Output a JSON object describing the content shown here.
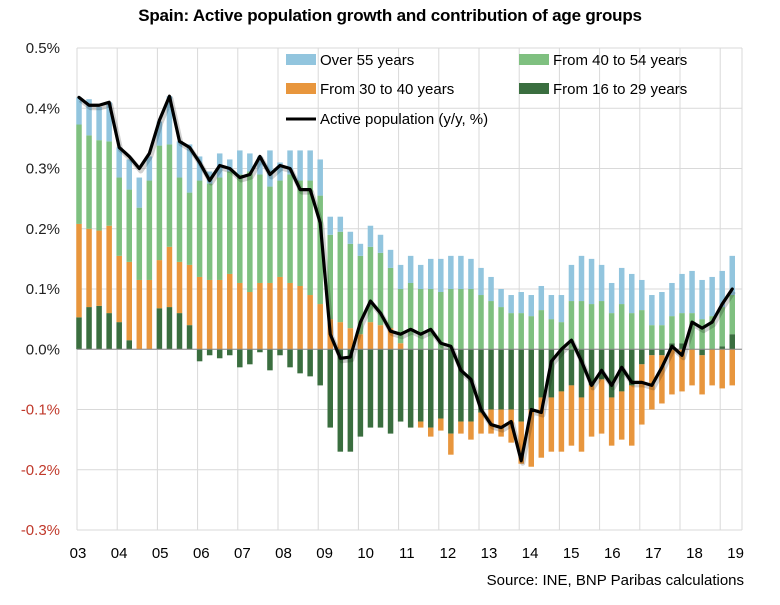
{
  "chart_data": {
    "type": "bar",
    "title": "Spain: Active population growth and contribution of age groups",
    "source": "Source: INE, BNP Paribas calculations",
    "xlabel": "",
    "ylabel": "",
    "ylim": [
      -0.3,
      0.5
    ],
    "yticks": [
      "0.5%",
      "0.4%",
      "0.3%",
      "0.2%",
      "0.1%",
      "0.0%",
      "-0.1%",
      "-0.2%",
      "-0.3%"
    ],
    "ytick_values": [
      0.5,
      0.4,
      0.3,
      0.2,
      0.1,
      0.0,
      -0.1,
      -0.2,
      -0.3
    ],
    "xtick_labels": [
      "03",
      "04",
      "05",
      "06",
      "07",
      "08",
      "09",
      "10",
      "11",
      "12",
      "13",
      "14",
      "15",
      "16",
      "17",
      "18",
      "19"
    ],
    "grid": true,
    "legend_position": "top-right",
    "frequency": "quarterly, 2003Q1-2019Q2",
    "colors": {
      "over55": "#92c5de",
      "from40to54": "#7fc080",
      "from30to40": "#e8963d",
      "from16to29": "#3a6e3f",
      "line": "#000000",
      "negative_tick": "#c0392b"
    },
    "series": [
      {
        "key": "from16to29",
        "name": "From 16 to 29 years",
        "type": "bar",
        "values": [
          0.053,
          0.07,
          0.072,
          0.06,
          0.045,
          0.015,
          0,
          0,
          0.068,
          0.07,
          0.06,
          0.04,
          -0.02,
          -0.01,
          -0.015,
          -0.01,
          -0.03,
          -0.025,
          -0.005,
          -0.035,
          -0.01,
          -0.03,
          -0.04,
          -0.045,
          -0.06,
          -0.13,
          -0.17,
          -0.17,
          -0.145,
          -0.13,
          -0.13,
          -0.14,
          -0.12,
          -0.13,
          -0.12,
          -0.13,
          -0.115,
          -0.14,
          -0.12,
          -0.12,
          -0.105,
          -0.1,
          -0.1,
          -0.1,
          -0.12,
          -0.1,
          -0.08,
          -0.08,
          -0.07,
          -0.06,
          -0.08,
          -0.06,
          -0.05,
          -0.08,
          -0.07,
          -0.06,
          -0.025,
          -0.01,
          -0.01,
          0.01,
          0.01,
          0.0,
          -0.01,
          0.0,
          0.005,
          0.025
        ]
      },
      {
        "key": "from30to40",
        "name": "From 30 to 40 years",
        "type": "bar",
        "values": [
          0.155,
          0.13,
          0.125,
          0.145,
          0.11,
          0.13,
          0.115,
          0.115,
          0.08,
          0.1,
          0.085,
          0.1,
          0.12,
          0.115,
          0.115,
          0.125,
          0.11,
          0.095,
          0.11,
          0.11,
          0.12,
          0.11,
          0.105,
          0.09,
          0.075,
          0.05,
          0.045,
          0.035,
          0.025,
          0.045,
          0.04,
          0.035,
          0.01,
          0.0,
          -0.01,
          -0.015,
          -0.02,
          -0.035,
          -0.02,
          -0.03,
          -0.035,
          -0.04,
          -0.045,
          -0.055,
          -0.07,
          -0.095,
          -0.1,
          -0.09,
          -0.1,
          -0.1,
          -0.09,
          -0.085,
          -0.09,
          -0.08,
          -0.08,
          -0.1,
          -0.1,
          -0.09,
          -0.08,
          -0.075,
          -0.07,
          -0.06,
          -0.065,
          -0.06,
          -0.065,
          -0.06
        ]
      },
      {
        "key": "from40to54",
        "name": "From 40 to 54 years",
        "type": "bar",
        "values": [
          0.165,
          0.155,
          0.15,
          0.14,
          0.13,
          0.12,
          0.12,
          0.165,
          0.19,
          0.17,
          0.14,
          0.12,
          0.16,
          0.16,
          0.17,
          0.17,
          0.18,
          0.2,
          0.18,
          0.16,
          0.16,
          0.18,
          0.175,
          0.19,
          0.18,
          0.14,
          0.15,
          0.14,
          0.13,
          0.125,
          0.12,
          0.1,
          0.09,
          0.11,
          0.1,
          0.1,
          0.095,
          0.1,
          0.1,
          0.1,
          0.09,
          0.08,
          0.07,
          0.06,
          0.06,
          0.055,
          0.065,
          0.05,
          0.045,
          0.08,
          0.08,
          0.075,
          0.08,
          0.06,
          0.075,
          0.06,
          0.065,
          0.04,
          0.04,
          0.045,
          0.05,
          0.06,
          0.05,
          0.055,
          0.065,
          0.065
        ]
      },
      {
        "key": "over55",
        "name": "Over 55 years",
        "type": "bar",
        "values": [
          0.045,
          0.06,
          0.055,
          0.065,
          0.05,
          0.05,
          0.05,
          0.04,
          0.04,
          0.08,
          0.06,
          0.08,
          0.04,
          0.02,
          0.04,
          0.02,
          0.04,
          0.03,
          0.03,
          0.06,
          0.03,
          0.04,
          0.05,
          0.05,
          0.06,
          0.03,
          0.025,
          0.02,
          0.02,
          0.035,
          0.03,
          0.03,
          0.04,
          0.045,
          0.04,
          0.05,
          0.055,
          0.055,
          0.055,
          0.05,
          0.045,
          0.04,
          0.03,
          0.03,
          0.035,
          0.035,
          0.04,
          0.04,
          0.045,
          0.06,
          0.075,
          0.075,
          0.06,
          0.05,
          0.06,
          0.065,
          0.05,
          0.05,
          0.055,
          0.055,
          0.065,
          0.07,
          0.065,
          0.065,
          0.06,
          0.065
        ]
      },
      {
        "key": "total",
        "name": "Active population (y/y, %)",
        "type": "line",
        "values": [
          0.418,
          0.405,
          0.405,
          0.41,
          0.335,
          0.32,
          0.3,
          0.325,
          0.38,
          0.42,
          0.345,
          0.335,
          0.31,
          0.28,
          0.305,
          0.3,
          0.285,
          0.29,
          0.32,
          0.29,
          0.305,
          0.3,
          0.265,
          0.265,
          0.21,
          0.025,
          -0.015,
          -0.013,
          0.045,
          0.08,
          0.06,
          0.03,
          0.025,
          0.033,
          0.025,
          0.033,
          0.01,
          0.005,
          -0.035,
          -0.05,
          -0.1,
          -0.125,
          -0.13,
          -0.12,
          -0.185,
          -0.1,
          -0.105,
          -0.02,
          0.0,
          0.015,
          -0.02,
          -0.06,
          -0.035,
          -0.06,
          -0.03,
          -0.055,
          -0.055,
          -0.06,
          -0.03,
          0.005,
          -0.01,
          0.045,
          0.035,
          0.045,
          0.075,
          0.1
        ]
      }
    ]
  }
}
